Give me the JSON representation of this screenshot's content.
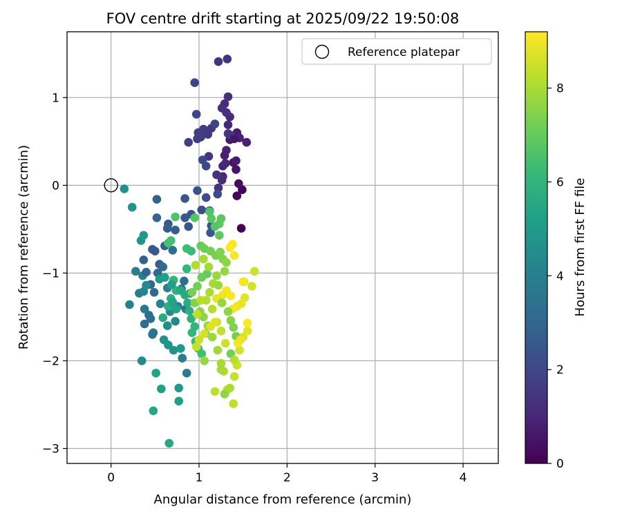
{
  "chart_data": {
    "type": "scatter",
    "title": "FOV centre drift starting at 2025/09/22 19:50:08",
    "xlabel": "Angular distance from reference (arcmin)",
    "ylabel": "Rotation from reference (arcmin)",
    "xlim": [
      -0.5,
      4.4
    ],
    "ylim": [
      -3.17,
      1.75
    ],
    "xticks": [
      0,
      1,
      2,
      3,
      4
    ],
    "xtick_labels": [
      "0",
      "1",
      "2",
      "3",
      "4"
    ],
    "yticks": [
      1,
      0,
      -1,
      -2,
      -3
    ],
    "ytick_labels": [
      "1",
      "0",
      "−1",
      "−2",
      "−3"
    ],
    "grid": true,
    "legend": {
      "location": "top-right",
      "label": "Reference platepar"
    },
    "reference_point": {
      "x": 0,
      "y": 0
    },
    "colorbar": {
      "label": "Hours from first FF file",
      "min": 0,
      "max": 9.2,
      "ticks": [
        0,
        2,
        4,
        6,
        8
      ],
      "tick_labels": [
        "0",
        "2",
        "4",
        "6",
        "8"
      ],
      "colormap": "viridis",
      "colors": [
        "#440154",
        "#482878",
        "#3e4989",
        "#31688e",
        "#26828e",
        "#1f9e89",
        "#35b779",
        "#6ece58",
        "#b5de2b",
        "#fde725"
      ]
    },
    "points": [
      [
        1.48,
        -0.49,
        0.05
      ],
      [
        1.49,
        -0.05,
        0.1
      ],
      [
        1.43,
        -0.12,
        0.2
      ],
      [
        1.45,
        0.02,
        0.3
      ],
      [
        1.39,
        0.26,
        0.4
      ],
      [
        1.42,
        0.18,
        0.5
      ],
      [
        1.35,
        0.52,
        0.6
      ],
      [
        1.43,
        0.6,
        0.7
      ],
      [
        1.54,
        0.49,
        0.8
      ],
      [
        1.46,
        0.54,
        0.9
      ],
      [
        1.33,
        0.69,
        1.0
      ],
      [
        1.35,
        0.78,
        1.1
      ],
      [
        1.29,
        0.93,
        1.15
      ],
      [
        1.33,
        1.01,
        1.2
      ],
      [
        1.26,
        0.88,
        1.25
      ],
      [
        1.31,
        0.83,
        1.3
      ],
      [
        1.32,
        1.44,
        1.35
      ],
      [
        1.22,
        1.41,
        1.4
      ],
      [
        1.33,
        0.59,
        1.45
      ],
      [
        1.36,
        0.57,
        1.5
      ],
      [
        1.4,
        0.53,
        0.6
      ],
      [
        1.42,
        0.28,
        0.7
      ],
      [
        1.29,
        0.34,
        0.8
      ],
      [
        1.31,
        0.4,
        0.9
      ],
      [
        1.27,
        0.22,
        1.0
      ],
      [
        1.3,
        0.25,
        1.05
      ],
      [
        1.27,
        0.1,
        1.1
      ],
      [
        1.26,
        0.06,
        1.2
      ],
      [
        1.22,
        -0.03,
        1.3
      ],
      [
        1.2,
        0.12,
        1.35
      ],
      [
        1.11,
        0.33,
        1.4
      ],
      [
        1.14,
        0.65,
        1.45
      ],
      [
        1.05,
        0.64,
        1.5
      ],
      [
        1.1,
        0.58,
        1.55
      ],
      [
        1.07,
        0.62,
        1.6
      ],
      [
        1.02,
        0.55,
        1.65
      ],
      [
        0.99,
        0.6,
        1.7
      ],
      [
        0.98,
        0.53,
        1.75
      ],
      [
        0.88,
        0.49,
        1.8
      ],
      [
        1.18,
        0.7,
        1.85
      ],
      [
        0.95,
        1.17,
        1.9
      ],
      [
        0.97,
        0.81,
        1.95
      ],
      [
        1.04,
        0.29,
        2.0
      ],
      [
        1.08,
        0.22,
        2.05
      ],
      [
        1.21,
        -0.1,
        2.1
      ],
      [
        1.08,
        -0.14,
        2.15
      ],
      [
        1.03,
        -0.28,
        2.2
      ],
      [
        1.12,
        -0.29,
        2.25
      ],
      [
        1.14,
        -0.46,
        2.3
      ],
      [
        0.98,
        -0.06,
        2.35
      ],
      [
        0.91,
        -0.33,
        2.4
      ],
      [
        0.88,
        -0.47,
        2.45
      ],
      [
        0.84,
        -0.37,
        2.5
      ],
      [
        0.84,
        -0.15,
        2.55
      ],
      [
        1.13,
        -0.54,
        2.6
      ],
      [
        0.65,
        -0.44,
        2.65
      ],
      [
        0.64,
        -0.49,
        2.7
      ],
      [
        0.73,
        -0.51,
        2.8
      ],
      [
        0.52,
        -0.16,
        2.9
      ],
      [
        0.52,
        -0.37,
        3.0
      ],
      [
        0.47,
        -0.73,
        2.5
      ],
      [
        0.5,
        -0.75,
        2.6
      ],
      [
        0.55,
        -0.9,
        2.7
      ],
      [
        0.61,
        -0.69,
        2.8
      ],
      [
        0.37,
        -0.85,
        2.9
      ],
      [
        0.45,
        -1.13,
        3.0
      ],
      [
        0.49,
        -1.22,
        3.1
      ],
      [
        0.43,
        -1.48,
        3.2
      ],
      [
        0.38,
        -1.58,
        3.3
      ],
      [
        0.45,
        -1.52,
        3.4
      ],
      [
        0.48,
        -1.68,
        3.5
      ],
      [
        0.47,
        -1.7,
        3.6
      ],
      [
        0.38,
        -1.41,
        3.7
      ],
      [
        0.32,
        -1.23,
        3.8
      ],
      [
        0.28,
        -0.98,
        3.9
      ],
      [
        0.21,
        -1.36,
        4.0
      ],
      [
        0.36,
        -1.03,
        4.1
      ],
      [
        0.37,
        -1.21,
        4.2
      ],
      [
        0.4,
        -1.14,
        4.3
      ],
      [
        0.35,
        -2.0,
        4.4
      ],
      [
        0.4,
        -0.99,
        3.0
      ],
      [
        0.53,
        -1.0,
        3.1
      ],
      [
        0.59,
        -0.93,
        3.2
      ],
      [
        0.7,
        -0.74,
        3.3
      ],
      [
        0.83,
        -1.09,
        3.4
      ],
      [
        0.8,
        -1.18,
        3.5
      ],
      [
        0.9,
        -1.23,
        3.6
      ],
      [
        0.85,
        -1.41,
        3.7
      ],
      [
        0.81,
        -1.97,
        3.8
      ],
      [
        0.86,
        -2.14,
        3.9
      ],
      [
        0.76,
        -1.38,
        4.0
      ],
      [
        0.64,
        -1.17,
        4.1
      ],
      [
        0.56,
        -1.35,
        4.2
      ],
      [
        0.73,
        -1.55,
        4.3
      ],
      [
        0.67,
        -1.44,
        4.4
      ],
      [
        0.64,
        -1.6,
        4.5
      ],
      [
        0.71,
        -1.88,
        4.6
      ],
      [
        0.6,
        -1.76,
        4.7
      ],
      [
        0.65,
        -1.82,
        4.8
      ],
      [
        0.79,
        -1.86,
        4.9
      ],
      [
        0.77,
        -2.31,
        5.0
      ],
      [
        0.77,
        -2.46,
        5.1
      ],
      [
        0.57,
        -2.32,
        5.2
      ],
      [
        0.51,
        -2.14,
        5.3
      ],
      [
        0.48,
        -2.57,
        5.4
      ],
      [
        0.66,
        -2.94,
        5.5
      ],
      [
        0.59,
        -1.51,
        5.6
      ],
      [
        0.65,
        -1.38,
        5.7
      ],
      [
        0.68,
        -1.29,
        5.8
      ],
      [
        0.74,
        -1.2,
        5.9
      ],
      [
        0.71,
        -1.08,
        6.0
      ],
      [
        0.86,
        -0.95,
        6.1
      ],
      [
        0.91,
        -0.75,
        6.2
      ],
      [
        0.86,
        -0.72,
        6.3
      ],
      [
        0.68,
        -0.63,
        6.4
      ],
      [
        0.65,
        -0.66,
        6.5
      ],
      [
        0.73,
        -0.36,
        6.6
      ],
      [
        0.95,
        -0.37,
        6.7
      ],
      [
        1.14,
        -0.38,
        6.8
      ],
      [
        1.23,
        -0.44,
        6.9
      ],
      [
        0.15,
        -0.04,
        4.6
      ],
      [
        0.24,
        -0.25,
        4.7
      ],
      [
        0.34,
        -0.63,
        4.8
      ],
      [
        0.37,
        -0.57,
        4.9
      ],
      [
        0.55,
        -1.07,
        5.0
      ],
      [
        0.61,
        -1.05,
        5.1
      ],
      [
        0.69,
        -1.13,
        5.2
      ],
      [
        0.7,
        -1.33,
        5.3
      ],
      [
        0.74,
        -1.41,
        5.4
      ],
      [
        0.79,
        -1.2,
        5.5
      ],
      [
        0.84,
        -1.25,
        5.6
      ],
      [
        0.87,
        -1.34,
        5.7
      ],
      [
        0.89,
        -1.43,
        5.8
      ],
      [
        0.91,
        -1.52,
        5.9
      ],
      [
        0.95,
        -1.61,
        6.0
      ],
      [
        0.92,
        -1.68,
        6.1
      ],
      [
        0.96,
        -1.78,
        6.2
      ],
      [
        0.99,
        -1.86,
        6.3
      ],
      [
        1.03,
        -1.92,
        6.4
      ],
      [
        1.07,
        -1.69,
        6.5
      ],
      [
        1.12,
        -0.3,
        6.6
      ],
      [
        1.18,
        -0.47,
        6.7
      ],
      [
        1.25,
        -0.38,
        6.8
      ],
      [
        1.23,
        -0.57,
        6.9
      ],
      [
        1.02,
        -0.69,
        7.0
      ],
      [
        1.06,
        -0.72,
        7.1
      ],
      [
        1.13,
        -0.75,
        7.2
      ],
      [
        1.19,
        -0.8,
        7.3
      ],
      [
        1.24,
        -0.76,
        7.4
      ],
      [
        1.27,
        -0.84,
        7.5
      ],
      [
        1.31,
        -0.88,
        7.6
      ],
      [
        1.29,
        -0.98,
        7.7
      ],
      [
        1.2,
        -1.03,
        7.8
      ],
      [
        1.16,
        -1.12,
        7.9
      ],
      [
        1.12,
        -1.22,
        8.0
      ],
      [
        1.08,
        -1.31,
        8.1
      ],
      [
        1.15,
        -1.41,
        8.2
      ],
      [
        1.2,
        -1.56,
        8.3
      ],
      [
        1.25,
        -1.66,
        8.4
      ],
      [
        1.3,
        -1.8,
        8.5
      ],
      [
        1.09,
        -1.01,
        7.0
      ],
      [
        1.03,
        -1.05,
        7.1
      ],
      [
        0.98,
        -1.15,
        7.2
      ],
      [
        0.92,
        -1.22,
        7.3
      ],
      [
        0.95,
        -1.34,
        7.4
      ],
      [
        1.01,
        -1.44,
        7.5
      ],
      [
        1.05,
        -1.5,
        7.6
      ],
      [
        1.1,
        -1.6,
        7.7
      ],
      [
        1.15,
        -1.73,
        7.8
      ],
      [
        1.21,
        -1.88,
        7.9
      ],
      [
        1.25,
        -2.03,
        8.0
      ],
      [
        1.28,
        -2.12,
        8.1
      ],
      [
        1.32,
        -2.33,
        8.2
      ],
      [
        1.39,
        -2.49,
        8.3
      ],
      [
        1.4,
        -2.18,
        8.4
      ],
      [
        1.43,
        -2.05,
        8.5
      ],
      [
        1.46,
        -1.88,
        8.6
      ],
      [
        1.5,
        -1.73,
        8.7
      ],
      [
        1.55,
        -1.66,
        8.8
      ],
      [
        1.63,
        -0.98,
        8.5
      ],
      [
        1.6,
        -1.15,
        8.6
      ],
      [
        1.51,
        -1.1,
        8.7
      ],
      [
        1.52,
        -1.28,
        8.8
      ],
      [
        1.48,
        -1.35,
        8.9
      ],
      [
        1.43,
        -1.38,
        9.0
      ],
      [
        1.38,
        -1.41,
        9.05
      ],
      [
        1.36,
        -1.26,
        9.1
      ],
      [
        1.4,
        -0.8,
        9.15
      ],
      [
        1.35,
        -0.71,
        9.2
      ],
      [
        1.38,
        -0.67,
        9.2
      ],
      [
        1.31,
        -1.2,
        9.1
      ],
      [
        1.27,
        -1.25,
        9.0
      ],
      [
        1.2,
        -1.29,
        8.9
      ],
      [
        1.18,
        -1.56,
        8.8
      ],
      [
        1.13,
        -1.61,
        8.7
      ],
      [
        1.06,
        -1.69,
        8.6
      ],
      [
        1.0,
        -1.76,
        8.5
      ],
      [
        0.97,
        -1.84,
        8.4
      ],
      [
        0.98,
        -1.47,
        8.3
      ],
      [
        1.02,
        -1.31,
        8.2
      ],
      [
        0.96,
        -0.91,
        8.1
      ],
      [
        1.05,
        -0.84,
        8.0
      ],
      [
        1.11,
        -0.93,
        7.9
      ],
      [
        1.22,
        -1.14,
        7.8
      ],
      [
        1.26,
        -1.34,
        7.7
      ],
      [
        1.33,
        -1.44,
        7.6
      ],
      [
        1.36,
        -1.54,
        7.5
      ],
      [
        1.39,
        -1.62,
        7.4
      ],
      [
        1.42,
        -1.72,
        7.3
      ],
      [
        1.36,
        -1.92,
        7.2
      ],
      [
        1.18,
        -2.35,
        8.3
      ],
      [
        1.25,
        -2.1,
        7.9
      ],
      [
        1.06,
        -2.0,
        7.7
      ],
      [
        1.4,
        -1.99,
        8.2
      ],
      [
        1.44,
        -1.8,
        9.1
      ],
      [
        1.47,
        -1.76,
        9.0
      ],
      [
        1.55,
        -1.57,
        9.2
      ],
      [
        1.5,
        -1.1,
        9.1
      ],
      [
        1.29,
        -2.38,
        7.6
      ],
      [
        1.35,
        -2.31,
        8.0
      ]
    ]
  }
}
